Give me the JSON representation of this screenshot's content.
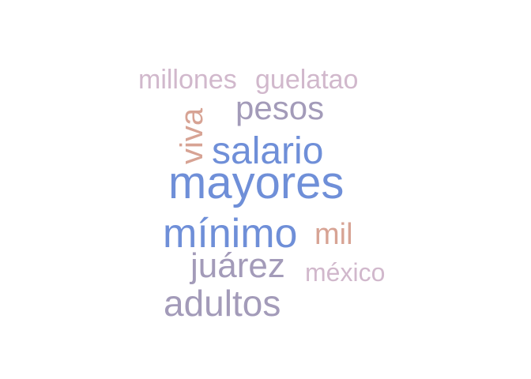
{
  "word_cloud": {
    "words": [
      {
        "id": "millones",
        "text": "millones",
        "color": "#d1b8cc"
      },
      {
        "id": "guelatao",
        "text": "guelatao",
        "color": "#d1b8cc"
      },
      {
        "id": "pesos",
        "text": "pesos",
        "color": "#a39bb9"
      },
      {
        "id": "viva",
        "text": "viva",
        "color": "#d7a394"
      },
      {
        "id": "salario",
        "text": "salario",
        "color": "#6f8fd8"
      },
      {
        "id": "mayores",
        "text": "mayores",
        "color": "#6f8fd8"
      },
      {
        "id": "minimo",
        "text": "mínimo",
        "color": "#6f8fd8"
      },
      {
        "id": "mil",
        "text": "mil",
        "color": "#d7a394"
      },
      {
        "id": "juarez",
        "text": "juárez",
        "color": "#a39bb9"
      },
      {
        "id": "mexico",
        "text": "méxico",
        "color": "#d1b8cc"
      },
      {
        "id": "adultos",
        "text": "adultos",
        "color": "#a39bb9"
      }
    ]
  }
}
